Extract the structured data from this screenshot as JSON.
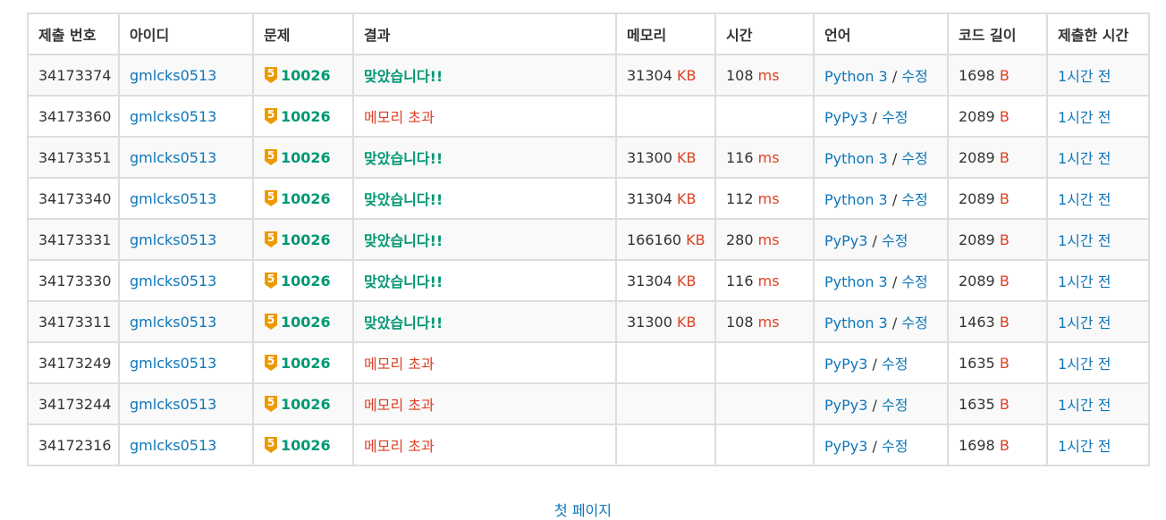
{
  "headers": [
    "제출 번호",
    "아이디",
    "문제",
    "결과",
    "메모리",
    "시간",
    "언어",
    "코드 길이",
    "제출한 시간"
  ],
  "separator": "/",
  "edit_label": "수정",
  "memory_unit": "KB",
  "time_unit": "ms",
  "code_unit": "B",
  "tier_level": "5",
  "rows": [
    {
      "id": "34173374",
      "user": "gmlcks0513",
      "problem": "10026",
      "result": "맞았습니다!!",
      "result_type": "ac",
      "memory": "31304",
      "time": "108",
      "lang": "Python 3",
      "code_len": "1698",
      "submitted": "1시간 전"
    },
    {
      "id": "34173360",
      "user": "gmlcks0513",
      "problem": "10026",
      "result": "메모리 초과",
      "result_type": "mle",
      "memory": "",
      "time": "",
      "lang": "PyPy3",
      "code_len": "2089",
      "submitted": "1시간 전"
    },
    {
      "id": "34173351",
      "user": "gmlcks0513",
      "problem": "10026",
      "result": "맞았습니다!!",
      "result_type": "ac",
      "memory": "31300",
      "time": "116",
      "lang": "Python 3",
      "code_len": "2089",
      "submitted": "1시간 전"
    },
    {
      "id": "34173340",
      "user": "gmlcks0513",
      "problem": "10026",
      "result": "맞았습니다!!",
      "result_type": "ac",
      "memory": "31304",
      "time": "112",
      "lang": "Python 3",
      "code_len": "2089",
      "submitted": "1시간 전"
    },
    {
      "id": "34173331",
      "user": "gmlcks0513",
      "problem": "10026",
      "result": "맞았습니다!!",
      "result_type": "ac",
      "memory": "166160",
      "time": "280",
      "lang": "PyPy3",
      "code_len": "2089",
      "submitted": "1시간 전"
    },
    {
      "id": "34173330",
      "user": "gmlcks0513",
      "problem": "10026",
      "result": "맞았습니다!!",
      "result_type": "ac",
      "memory": "31304",
      "time": "116",
      "lang": "Python 3",
      "code_len": "2089",
      "submitted": "1시간 전"
    },
    {
      "id": "34173311",
      "user": "gmlcks0513",
      "problem": "10026",
      "result": "맞았습니다!!",
      "result_type": "ac",
      "memory": "31300",
      "time": "108",
      "lang": "Python 3",
      "code_len": "1463",
      "submitted": "1시간 전"
    },
    {
      "id": "34173249",
      "user": "gmlcks0513",
      "problem": "10026",
      "result": "메모리 초과",
      "result_type": "mle",
      "memory": "",
      "time": "",
      "lang": "PyPy3",
      "code_len": "1635",
      "submitted": "1시간 전"
    },
    {
      "id": "34173244",
      "user": "gmlcks0513",
      "problem": "10026",
      "result": "메모리 초과",
      "result_type": "mle",
      "memory": "",
      "time": "",
      "lang": "PyPy3",
      "code_len": "1635",
      "submitted": "1시간 전"
    },
    {
      "id": "34172316",
      "user": "gmlcks0513",
      "problem": "10026",
      "result": "메모리 초과",
      "result_type": "mle",
      "memory": "",
      "time": "",
      "lang": "PyPy3",
      "code_len": "1698",
      "submitted": "1시간 전"
    }
  ],
  "pagination": {
    "first_page": "첫 페이지"
  },
  "colors": {
    "link": "#0e76b8",
    "accepted": "#009874",
    "error": "#dd4124",
    "tier_gold": "#ec9a00",
    "border": "#dddddd"
  }
}
